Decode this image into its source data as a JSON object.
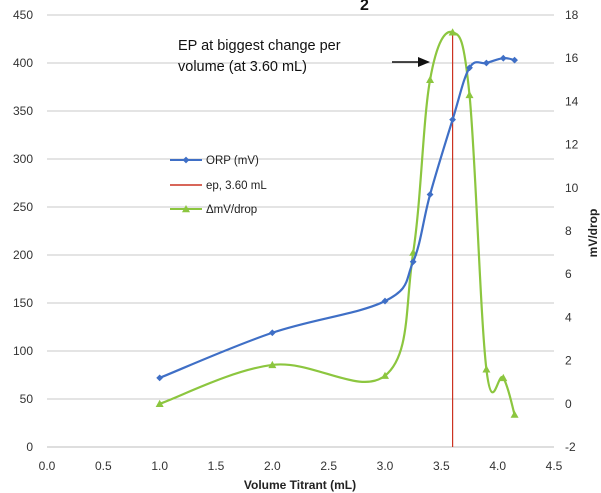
{
  "chart_data": {
    "type": "line",
    "title_fragment": "2",
    "xlabel": "Volume Titrant (mL)",
    "ylabel": "",
    "y2label": "mV/drop",
    "xlim": [
      0,
      4.5
    ],
    "ylim": [
      0,
      450
    ],
    "y2lim": [
      -2,
      18
    ],
    "x_ticks": [
      "0.0",
      "0.5",
      "1.0",
      "1.5",
      "2.0",
      "2.5",
      "3.0",
      "3.5",
      "4.0",
      "4.5"
    ],
    "y_ticks": [
      "0",
      "50",
      "100",
      "150",
      "200",
      "250",
      "300",
      "350",
      "400",
      "450"
    ],
    "y2_ticks": [
      "-2",
      "0",
      "2",
      "4",
      "6",
      "8",
      "10",
      "12",
      "14",
      "16",
      "18"
    ],
    "grid": true,
    "legend_position": "left",
    "series": [
      {
        "name": "ORP (mV)",
        "axis": "left",
        "color": "#3f6fc6",
        "marker": "diamond",
        "x": [
          1.0,
          2.0,
          3.0,
          3.25,
          3.4,
          3.6,
          3.75,
          3.9,
          4.05,
          4.15
        ],
        "y": [
          72,
          119,
          152,
          193,
          263,
          341,
          395,
          400,
          405,
          403
        ]
      },
      {
        "name": "ep, 3.60 mL",
        "axis": "left",
        "color": "#cc3322",
        "marker": "none",
        "x": [
          3.6,
          3.6
        ],
        "y": [
          0,
          430
        ]
      },
      {
        "name": "ΔmV/drop",
        "axis": "right",
        "color": "#8cc63f",
        "marker": "triangle",
        "x": [
          1.0,
          2.0,
          3.0,
          3.25,
          3.4,
          3.6,
          3.75,
          3.9,
          4.05,
          4.15
        ],
        "y": [
          0.0,
          1.8,
          1.3,
          7.0,
          15.0,
          17.2,
          14.3,
          1.6,
          1.2,
          -0.5
        ]
      }
    ],
    "annotations": [
      {
        "lines": [
          "EP at biggest change per",
          "volume (at 3.60 mL)"
        ]
      }
    ]
  }
}
